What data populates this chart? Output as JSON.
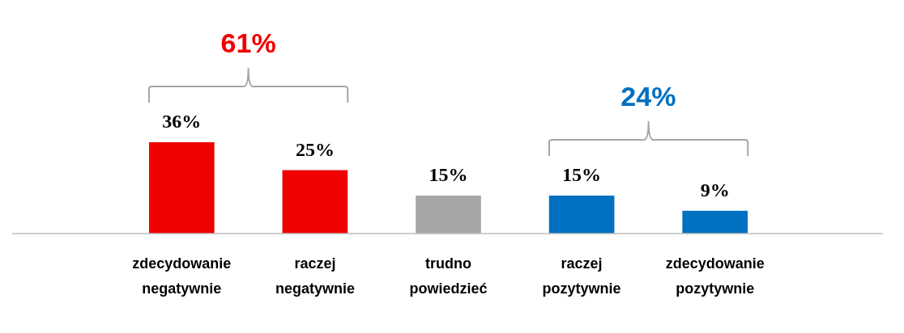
{
  "chart_data": {
    "type": "bar",
    "categories": [
      "zdecydowanie negatywnie",
      "raczej negatywnie",
      "trudno powiedzieć",
      "raczej pozytywnie",
      "zdecydowanie pozytywnie"
    ],
    "values": [
      36,
      25,
      15,
      15,
      9
    ],
    "value_labels": [
      "36%",
      "25%",
      "15%",
      "15%",
      "9%"
    ],
    "colors": [
      "#f00000",
      "#f00000",
      "#a6a6a6",
      "#0070c0",
      "#0070c0"
    ],
    "annotations": [
      "61%",
      "24%"
    ],
    "grid": false,
    "legend": false
  }
}
